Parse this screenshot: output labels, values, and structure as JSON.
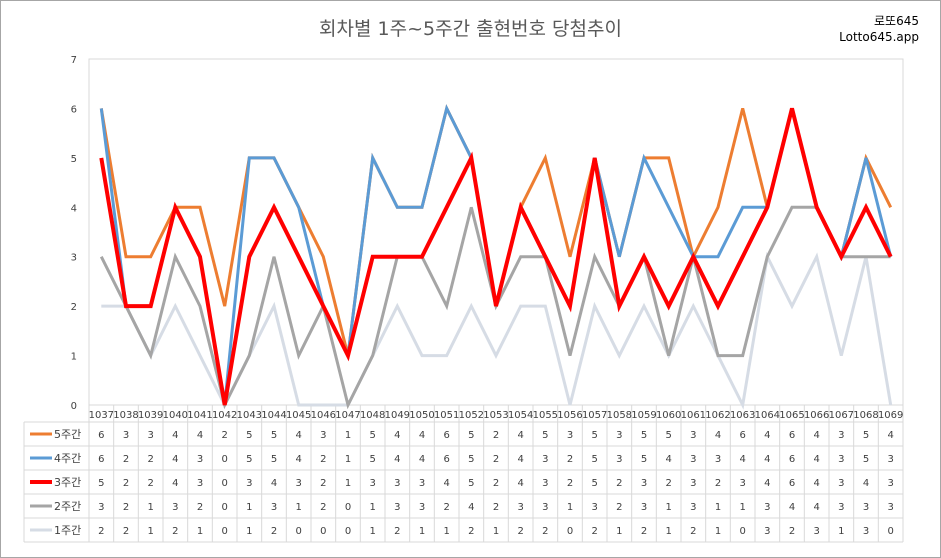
{
  "title": "회차별 1주~5주간 출현번호 당첨추이",
  "watermark": {
    "line1": "로또645",
    "line2": "Lotto645.app"
  },
  "chart_data": {
    "type": "line",
    "title": "회차별 1주~5주간 출현번호 당첨추이",
    "xlabel": "",
    "ylabel": "",
    "ylim": [
      0,
      7
    ],
    "yticks": [
      0,
      1,
      2,
      3,
      4,
      5,
      6,
      7
    ],
    "grid": false,
    "legend": "data-table-left",
    "categories": [
      "1037",
      "1038",
      "1039",
      "1040",
      "1041",
      "1042",
      "1043",
      "1044",
      "1045",
      "1046",
      "1047",
      "1048",
      "1049",
      "1050",
      "1051",
      "1052",
      "1053",
      "1054",
      "1055",
      "1056",
      "1057",
      "1058",
      "1059",
      "1060",
      "1061",
      "1062",
      "1063",
      "1064",
      "1065",
      "1066",
      "1067",
      "1068",
      "1069"
    ],
    "series": [
      {
        "name": "5주간",
        "color": "#ed7d31",
        "values": [
          6,
          3,
          3,
          4,
          4,
          2,
          5,
          5,
          4,
          3,
          1,
          5,
          4,
          4,
          6,
          5,
          2,
          4,
          5,
          3,
          5,
          3,
          5,
          5,
          3,
          4,
          6,
          4,
          6,
          4,
          3,
          5,
          4
        ]
      },
      {
        "name": "4주간",
        "color": "#5b9bd5",
        "values": [
          6,
          2,
          2,
          4,
          3,
          0,
          5,
          5,
          4,
          2,
          1,
          5,
          4,
          4,
          6,
          5,
          2,
          4,
          3,
          2,
          5,
          3,
          5,
          4,
          3,
          3,
          4,
          4,
          6,
          4,
          3,
          5,
          3
        ]
      },
      {
        "name": "3주간",
        "color": "#ff0000",
        "values": [
          5,
          2,
          2,
          4,
          3,
          0,
          3,
          4,
          3,
          2,
          1,
          3,
          3,
          3,
          4,
          5,
          2,
          4,
          3,
          2,
          5,
          2,
          3,
          2,
          3,
          2,
          3,
          4,
          6,
          4,
          3,
          4,
          3
        ]
      },
      {
        "name": "2주간",
        "color": "#a5a5a5",
        "values": [
          3,
          2,
          1,
          3,
          2,
          0,
          1,
          3,
          1,
          2,
          0,
          1,
          3,
          3,
          2,
          4,
          2,
          3,
          3,
          1,
          3,
          2,
          3,
          1,
          3,
          1,
          1,
          3,
          4,
          4,
          3,
          3,
          3
        ]
      },
      {
        "name": "1주간",
        "color": "#d6dce5",
        "values": [
          2,
          2,
          1,
          2,
          1,
          0,
          1,
          2,
          0,
          0,
          0,
          1,
          2,
          1,
          1,
          2,
          1,
          2,
          2,
          0,
          2,
          1,
          2,
          1,
          2,
          1,
          0,
          3,
          2,
          3,
          1,
          3,
          0
        ]
      }
    ]
  }
}
